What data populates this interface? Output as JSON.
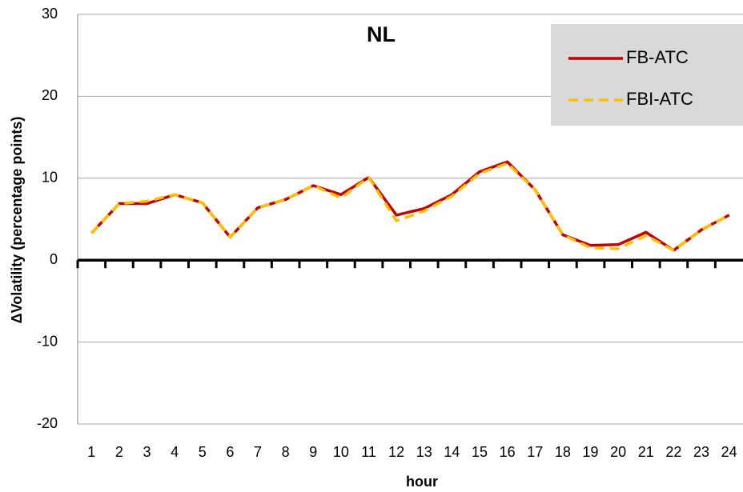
{
  "chart_data": {
    "type": "line",
    "title": "NL",
    "x_label": "hour",
    "y_label": "ΔVolatility  (percentage points)",
    "categories": [
      "1",
      "2",
      "3",
      "4",
      "5",
      "6",
      "7",
      "8",
      "9",
      "10",
      "11",
      "12",
      "13",
      "14",
      "15",
      "16",
      "17",
      "18",
      "19",
      "20",
      "21",
      "22",
      "23",
      "24"
    ],
    "series": [
      {
        "name": "FB-ATC",
        "color": "#c00000",
        "dashed": false,
        "values": [
          3.3,
          6.9,
          6.9,
          8.0,
          7.0,
          2.8,
          6.4,
          7.4,
          9.1,
          8.0,
          10.1,
          5.5,
          6.3,
          8.0,
          10.8,
          12.0,
          8.6,
          3.1,
          1.8,
          1.9,
          3.4,
          1.2,
          3.7,
          5.5
        ]
      },
      {
        "name": "FBI-ATC",
        "color": "#ffc000",
        "dashed": true,
        "values": [
          3.3,
          6.9,
          7.2,
          8.0,
          7.0,
          2.8,
          6.4,
          7.4,
          9.1,
          7.6,
          10.1,
          4.8,
          6.0,
          7.8,
          10.6,
          11.8,
          8.6,
          3.1,
          1.5,
          1.4,
          3.0,
          1.2,
          3.7,
          5.5
        ]
      }
    ],
    "ylim": [
      -20,
      30
    ],
    "yticks": [
      -20,
      -10,
      0,
      10,
      20,
      30
    ],
    "grid": true,
    "legend": "top-right"
  }
}
